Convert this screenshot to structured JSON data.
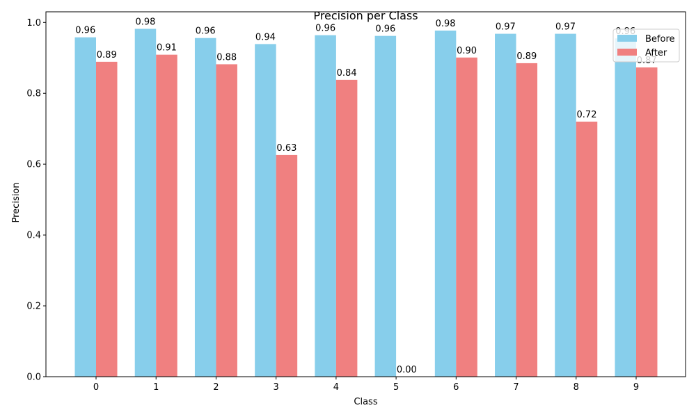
{
  "chart_data": {
    "type": "bar",
    "title": "Precision per Class",
    "xlabel": "Class",
    "ylabel": "Precision",
    "categories": [
      "0",
      "1",
      "2",
      "3",
      "4",
      "5",
      "6",
      "7",
      "8",
      "9"
    ],
    "series": [
      {
        "name": "Before",
        "color": "#87CEEB",
        "values": [
          0.958,
          0.982,
          0.956,
          0.939,
          0.964,
          0.962,
          0.977,
          0.968,
          0.968,
          0.955
        ],
        "labels": [
          "0.96",
          "0.98",
          "0.96",
          "0.94",
          "0.96",
          "0.96",
          "0.98",
          "0.97",
          "0.97",
          "0.96"
        ]
      },
      {
        "name": "After",
        "color": "#F08080",
        "values": [
          0.889,
          0.909,
          0.882,
          0.626,
          0.838,
          0.0,
          0.901,
          0.885,
          0.72,
          0.873
        ],
        "labels": [
          "0.89",
          "0.91",
          "0.88",
          "0.63",
          "0.84",
          "0.00",
          "0.90",
          "0.89",
          "0.72",
          "0.87"
        ]
      }
    ],
    "ylim": [
      0,
      1.03
    ],
    "yticks": [
      "0.0",
      "0.2",
      "0.4",
      "0.6",
      "0.8",
      "1.0"
    ],
    "grid": false,
    "legend_position": "top-right"
  }
}
